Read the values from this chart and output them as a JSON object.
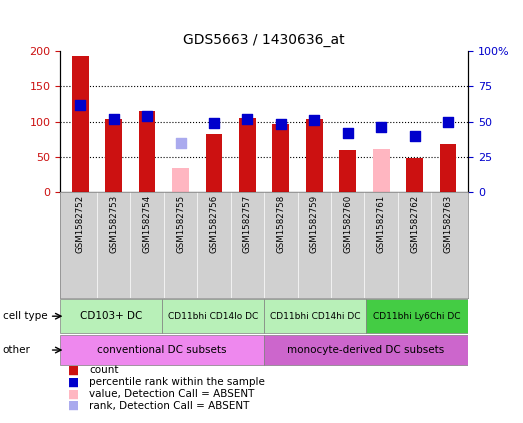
{
  "title": "GDS5663 / 1430636_at",
  "samples": [
    "GSM1582752",
    "GSM1582753",
    "GSM1582754",
    "GSM1582755",
    "GSM1582756",
    "GSM1582757",
    "GSM1582758",
    "GSM1582759",
    "GSM1582760",
    "GSM1582761",
    "GSM1582762",
    "GSM1582763"
  ],
  "red_values": [
    192,
    103,
    115,
    0,
    82,
    105,
    97,
    103,
    60,
    0,
    49,
    69
  ],
  "pink_values": [
    0,
    0,
    0,
    35,
    0,
    0,
    0,
    0,
    0,
    61,
    0,
    0
  ],
  "blue_values": [
    62,
    52,
    54,
    0,
    49,
    52,
    48,
    51,
    42,
    46,
    40,
    50
  ],
  "lblue_values": [
    0,
    0,
    0,
    35,
    0,
    0,
    0,
    0,
    0,
    0,
    0,
    0
  ],
  "absent_red": [
    false,
    false,
    false,
    true,
    false,
    false,
    false,
    false,
    false,
    true,
    false,
    false
  ],
  "absent_rank": [
    false,
    false,
    false,
    true,
    false,
    false,
    false,
    false,
    false,
    false,
    false,
    false
  ],
  "ylim_left": [
    0,
    200
  ],
  "ylim_right": [
    0,
    100
  ],
  "yticks_left": [
    0,
    50,
    100,
    150,
    200
  ],
  "yticks_right": [
    0,
    25,
    50,
    75,
    100
  ],
  "ytick_labels_right": [
    "0",
    "25",
    "50",
    "75",
    "100%"
  ],
  "cell_type_groups": [
    {
      "label": "CD103+ DC",
      "start": 0,
      "end": 3
    },
    {
      "label": "CD11bhi CD14lo DC",
      "start": 3,
      "end": 6
    },
    {
      "label": "CD11bhi CD14hi DC",
      "start": 6,
      "end": 9
    },
    {
      "label": "CD11bhi Ly6Chi DC",
      "start": 9,
      "end": 12
    }
  ],
  "cell_type_colors": [
    "#b8f0b8",
    "#b8f0b8",
    "#b8f0b8",
    "#44cc44"
  ],
  "other_groups": [
    {
      "label": "conventional DC subsets",
      "start": 0,
      "end": 6
    },
    {
      "label": "monocyte-derived DC subsets",
      "start": 6,
      "end": 12
    }
  ],
  "other_colors": [
    "#ee88ee",
    "#cc66cc"
  ],
  "red_color": "#CC1111",
  "pink_color": "#FFB6C1",
  "blue_color": "#0000CC",
  "lblue_color": "#aaaaee",
  "bar_width": 0.5,
  "blue_square_size": 50,
  "sample_bg_color": "#d0d0d0",
  "plot_bg_color": "#ffffff"
}
